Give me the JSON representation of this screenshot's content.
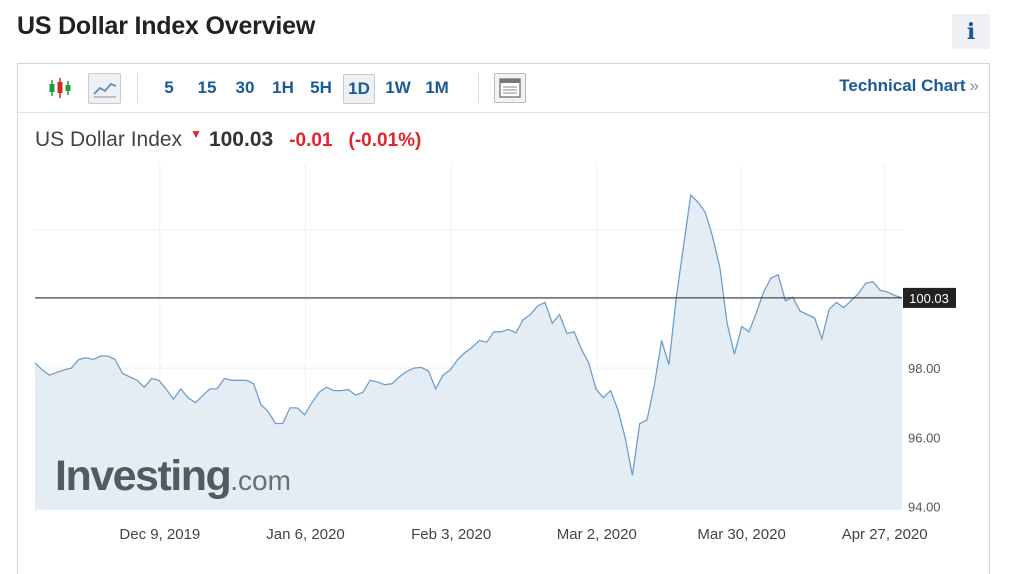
{
  "page": {
    "title": "US Dollar Index Overview",
    "info_label": "i"
  },
  "toolbar": {
    "intervals": [
      "5",
      "15",
      "30",
      "1H",
      "5H",
      "1D",
      "1W",
      "1M"
    ],
    "active_interval": "1D",
    "technical_chart_label": "Technical Chart",
    "technical_chart_arrows": "»",
    "icons": [
      "candlestick-icon",
      "line-chart-icon",
      "layout-icon"
    ]
  },
  "quote": {
    "name": "US Dollar Index",
    "direction": "down",
    "price": "100.03",
    "change": "-0.01",
    "change_pct": "(-0.01%)"
  },
  "colors": {
    "down": "#e0262b",
    "line": "#6f9fcf",
    "area": "#e4edf4",
    "link": "#1a5a96"
  },
  "watermark": {
    "brand": "Investing",
    "tld": ".com"
  },
  "chart_data": {
    "type": "area",
    "title": "",
    "xlabel": "",
    "ylabel": "",
    "x_tick_labels": [
      "Dec 9, 2019",
      "Jan 6, 2020",
      "Feb 3, 2020",
      "Mar 2, 2020",
      "Mar 30, 2020",
      "Apr 27, 2020"
    ],
    "y_tick_labels": [
      "94.00",
      "96.00",
      "98.00"
    ],
    "yticks": [
      94,
      96,
      98,
      100,
      102
    ],
    "ylim": [
      93.9,
      103.9
    ],
    "grid": true,
    "current_value": 100.03,
    "current_value_label": "100.03",
    "series": [
      {
        "values": [
          98.15,
          97.95,
          97.8,
          97.88,
          97.95,
          98.0,
          98.25,
          98.3,
          98.25,
          98.35,
          98.35,
          98.25,
          97.85,
          97.75,
          97.65,
          97.45,
          97.7,
          97.65,
          97.4,
          97.1,
          97.4,
          97.15,
          97.0,
          97.2,
          97.4,
          97.4,
          97.7,
          97.65,
          97.65,
          97.65,
          97.55,
          96.95,
          96.75,
          96.4,
          96.4,
          96.85,
          96.85,
          96.65,
          97.0,
          97.3,
          97.45,
          97.35,
          97.35,
          97.38,
          97.22,
          97.3,
          97.65,
          97.6,
          97.52,
          97.55,
          97.75,
          97.9,
          98.0,
          98.02,
          97.92,
          97.4,
          97.8,
          97.95,
          98.25,
          98.45,
          98.6,
          98.8,
          98.75,
          99.05,
          99.05,
          99.12,
          99.02,
          99.4,
          99.55,
          99.8,
          99.9,
          99.3,
          99.55,
          99.0,
          99.05,
          98.55,
          98.15,
          97.4,
          97.15,
          97.35,
          96.8,
          96.0,
          94.9,
          96.4,
          96.5,
          97.5,
          98.8,
          98.1,
          100.0,
          101.5,
          103.0,
          102.8,
          102.5,
          101.8,
          100.9,
          99.3,
          98.4,
          99.2,
          99.05,
          99.6,
          100.2,
          100.6,
          100.7,
          99.95,
          100.05,
          99.65,
          99.55,
          99.45,
          98.85,
          99.7,
          99.9,
          99.75,
          99.95,
          100.15,
          100.45,
          100.5,
          100.25,
          100.2,
          100.1,
          100.03
        ]
      }
    ]
  }
}
